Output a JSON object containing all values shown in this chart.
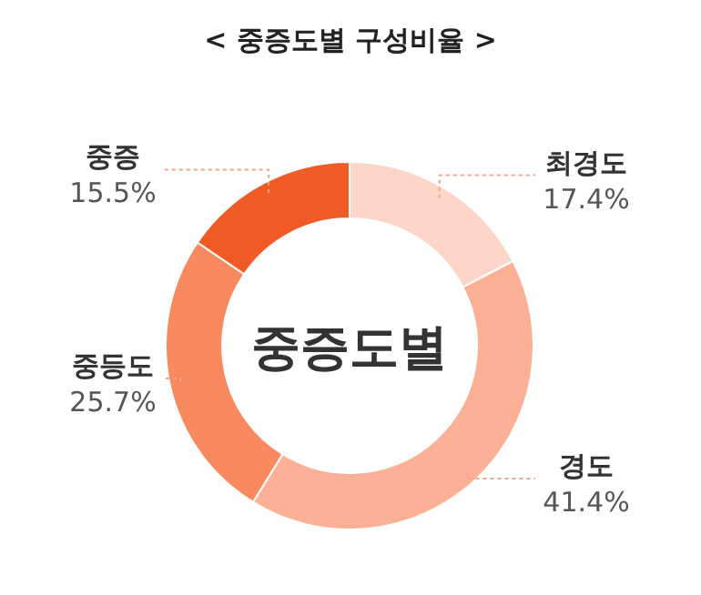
{
  "chart_data": {
    "type": "donut",
    "title": "< 중증도별 구성비율 >",
    "categories": [
      "최경도",
      "경도",
      "중등도",
      "중증"
    ],
    "values": [
      17.4,
      41.4,
      25.7,
      15.5
    ],
    "value_labels": [
      "17.4%",
      "41.4%",
      "25.7%",
      "15.5%"
    ],
    "colors": [
      "#fdd6c9",
      "#fcb197",
      "#f98a5f",
      "#f05a24"
    ],
    "annotations": [
      "중증도별"
    ],
    "legend": false
  }
}
